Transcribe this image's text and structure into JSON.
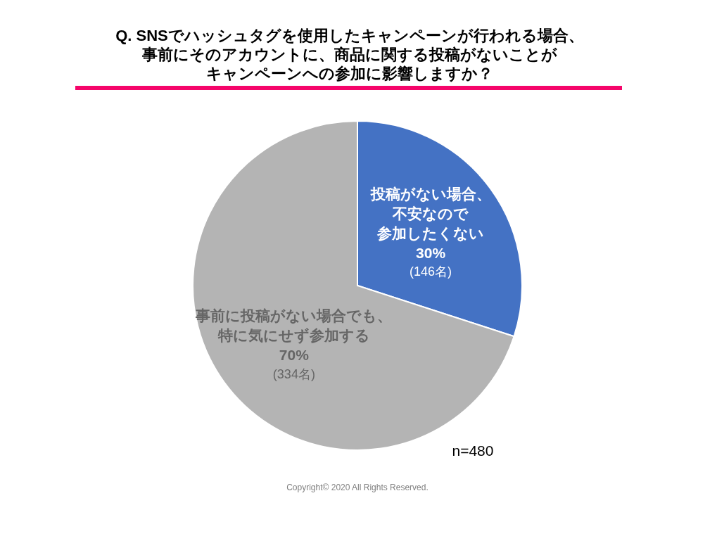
{
  "chart_data": {
    "type": "pie",
    "title": "Q. SNSでハッシュタグを使用したキャンペーンが行われる場合、事前にそのアカウントに、商品に関する投稿がないことがキャンペーンへの参加に影響しますか？",
    "categories": [
      "投稿がない場合、不安なので参加したくない",
      "事前に投稿がない場合でも、特に気にせず参加する"
    ],
    "values": [
      30,
      70
    ],
    "colors": [
      "#4472c4",
      "#b4b4b4"
    ],
    "value_labels": [
      "30%\n(146名)",
      "70%\n(334名)"
    ],
    "annotations": [
      "n=480",
      "Copyright© 2020 All Rights Reserved."
    ]
  }
}
